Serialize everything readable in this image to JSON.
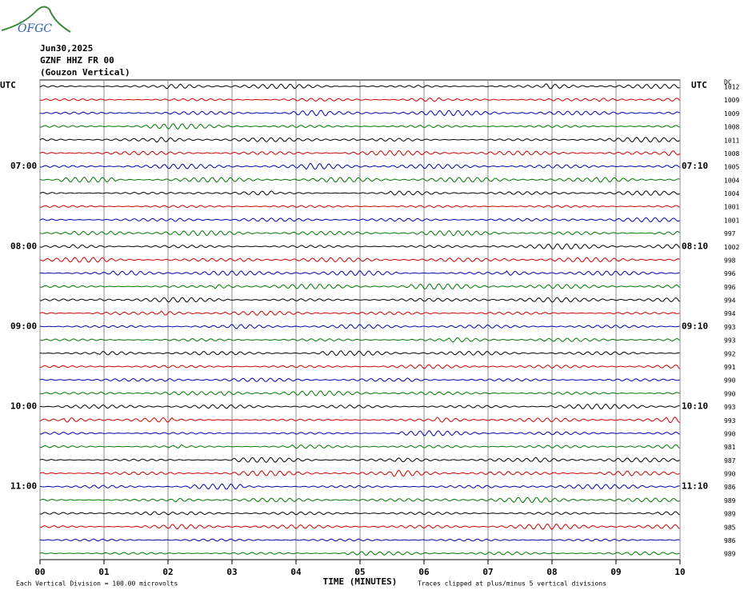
{
  "header": {
    "logo": "OFGC",
    "date": "Jun30,2025",
    "station": "GZNF HHZ FR 00",
    "location": "(Gouzon Vertical)"
  },
  "left_axis": {
    "title": "UTC",
    "labels": [
      "07:00",
      "08:00",
      "09:00",
      "10:00",
      "11:00"
    ]
  },
  "right_axis": {
    "title": "UTC",
    "labels": [
      "07:10",
      "08:10",
      "09:10",
      "10:10",
      "11:10"
    ],
    "dc_title": "DC",
    "dc_values": [
      "1012",
      "1009",
      "1009",
      "1008",
      "1011",
      "1008",
      "1005",
      "1004",
      "1004",
      "1001",
      "1001",
      "997",
      "1002",
      "998",
      "996",
      "996",
      "994",
      "994",
      "993",
      "993",
      "992",
      "991",
      "990",
      "990",
      "993",
      "993",
      "990",
      "981",
      "987",
      "990",
      "986",
      "989",
      "989",
      "985",
      "986",
      "989"
    ]
  },
  "x_axis": {
    "title": "TIME (MINUTES)",
    "ticks": [
      "00",
      "01",
      "02",
      "03",
      "04",
      "05",
      "06",
      "07",
      "08",
      "09",
      "10"
    ]
  },
  "footer": {
    "scale_note": "Each Vertical Division =  100.00 microvolts",
    "clip_note": "Traces clipped at plus/minus 5 vertical divisions"
  }
}
